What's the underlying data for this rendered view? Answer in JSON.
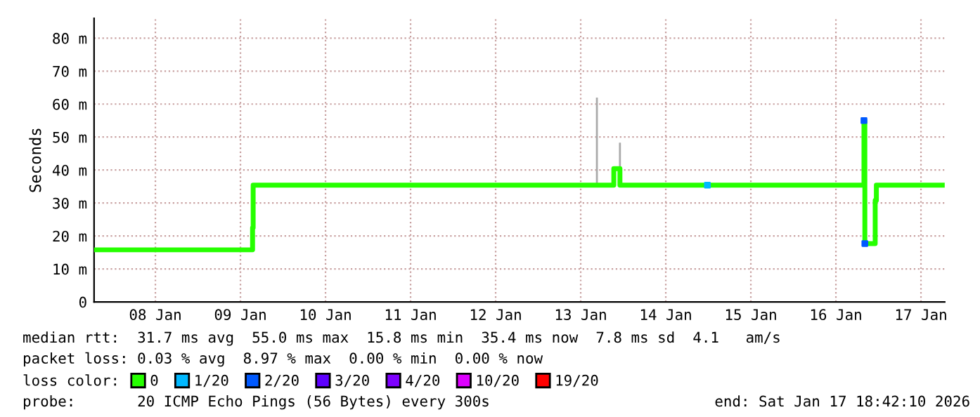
{
  "chart_data": {
    "type": "step",
    "ylabel": "Seconds",
    "xlim": [
      "2026-01-07T18:42",
      "2026-01-17T18:42"
    ],
    "xticks": [
      {
        "value": "2026-01-08T12:00",
        "label": "08 Jan"
      },
      {
        "value": "2026-01-09T12:00",
        "label": "09 Jan"
      },
      {
        "value": "2026-01-10T12:00",
        "label": "10 Jan"
      },
      {
        "value": "2026-01-11T12:00",
        "label": "11 Jan"
      },
      {
        "value": "2026-01-12T12:00",
        "label": "12 Jan"
      },
      {
        "value": "2026-01-13T12:00",
        "label": "13 Jan"
      },
      {
        "value": "2026-01-14T12:00",
        "label": "14 Jan"
      },
      {
        "value": "2026-01-15T12:00",
        "label": "15 Jan"
      },
      {
        "value": "2026-01-16T12:00",
        "label": "16 Jan"
      },
      {
        "value": "2026-01-17T12:00",
        "label": "17 Jan"
      }
    ],
    "ylim": [
      0,
      86
    ],
    "yticks": [
      0,
      {
        "value": 10,
        "label": "10 m"
      },
      {
        "value": 20,
        "label": "20 m"
      },
      {
        "value": 30,
        "label": "30 m"
      },
      {
        "value": 40,
        "label": "40 m"
      },
      {
        "value": 50,
        "label": "50 m"
      },
      {
        "value": 60,
        "label": "60 m"
      },
      {
        "value": 70,
        "label": "70 m"
      },
      {
        "value": 80,
        "label": "80 m"
      }
    ],
    "grid": true,
    "legend": "bottom",
    "legend_title": "loss color:",
    "series": [
      {
        "type": "line",
        "color": "#aaaaaa",
        "x": [
          "2026-01-13T16:34",
          "2026-01-13T16:34",
          "2026-01-13T20:00",
          "2026-01-13T23:04",
          "2026-01-13T23:04"
        ],
        "values": [
          35.4,
          61.7,
          null,
          40.4,
          48
        ]
      },
      {
        "name": "0",
        "color": "#26ff00",
        "x": [
          "2026-01-07T18:42",
          "2026-01-09T15:25",
          "2026-01-09T15:35",
          "2026-01-13T21:20",
          "2026-01-13T23:04",
          "2026-01-16T19:55",
          "2026-01-16T20:10",
          "2026-01-16T23:05",
          "2026-01-16T23:25",
          "2026-01-17T18:42"
        ],
        "values": [
          15.8,
          22.5,
          35.4,
          40.4,
          35.4,
          55.0,
          17.7,
          30.8,
          35.4,
          35.4
        ]
      },
      {
        "type": "scatter",
        "name": "1/20",
        "color": "#00b8ff",
        "x": [
          "2026-01-14T23:45"
        ],
        "values": [
          35.4
        ]
      },
      {
        "type": "scatter",
        "name": "2/20",
        "color": "#0059ff",
        "x": [
          "2026-01-16T19:55",
          "2026-01-16T20:10"
        ],
        "values": [
          55.0,
          17.7
        ]
      },
      {
        "type": "scatter",
        "name": "3/20",
        "color": "#5e00ff"
      },
      {
        "type": "scatter",
        "name": "4/20",
        "color": "#7e00ff"
      },
      {
        "type": "scatter",
        "name": "10/20",
        "color": "#dd00ff"
      },
      {
        "type": "scatter",
        "name": "19/20",
        "color": "#ff0000"
      }
    ],
    "annotations": [
      "median rtt:  31.7 ms avg  55.0 ms max  15.8 ms min  35.4 ms now  7.8 ms sd  4.1   am/s",
      "packet loss: 0.03 % avg  8.97 % max  0.00 % min  0.00 % now",
      "probe:       20 ICMP Echo Pings (56 Bytes) every 300s",
      "end: Sat Jan 17 18:42:10 2026"
    ]
  }
}
